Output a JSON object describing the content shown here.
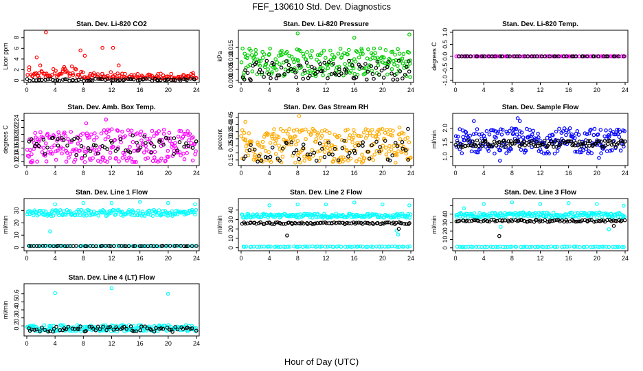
{
  "figure": {
    "title": "FEF_130610  Std. Dev. Diagnostics",
    "xlabel": "Hour of Day (UTC)"
  },
  "chart_data": [
    {
      "type": "scatter",
      "title": "Stan. Dev. Li-820 CO2",
      "ylabel": "Licor ppm",
      "xlim": [
        0,
        24
      ],
      "ylim": [
        0,
        9
      ],
      "xticks": [
        0,
        4,
        8,
        12,
        16,
        20,
        24
      ],
      "yticks": [
        0,
        2,
        4,
        6,
        8
      ],
      "ytick_labels": [
        "0",
        "2",
        "4",
        "6",
        "8"
      ],
      "colors": {
        "main": "#ff0000",
        "ref": "#000000"
      },
      "series": [
        {
          "color": "#ff0000",
          "baseline": 0.3,
          "spread": 0.8,
          "n": 150,
          "dist": "co2",
          "outliers": [
            [
              2.7,
              9.0
            ],
            [
              7.6,
              5.6
            ],
            [
              8.2,
              4.6
            ],
            [
              10.7,
              6.1
            ],
            [
              12.2,
              6.1
            ],
            [
              1.4,
              4.3
            ],
            [
              1.9,
              2.8
            ],
            [
              5.3,
              2.5
            ],
            [
              13.0,
              2.8
            ]
          ]
        },
        {
          "color": "#000000",
          "baseline": 0.12,
          "spread": 0.18,
          "n": 70,
          "dist": "uniform",
          "outliers": []
        }
      ]
    },
    {
      "type": "scatter",
      "title": "Stan. Dev. Li-820 Pressure",
      "ylabel": "kPa",
      "xlim": [
        0,
        24
      ],
      "ylim": [
        0,
        0.022
      ],
      "xticks": [
        0,
        4,
        8,
        12,
        16,
        20,
        24
      ],
      "yticks": [
        0,
        0.005,
        0.01,
        0.015
      ],
      "ytick_labels": [
        "0.000",
        "0.005",
        "0.010",
        "0.015"
      ],
      "colors": {
        "main": "#00cc00",
        "ref": "#000000"
      },
      "series": [
        {
          "color": "#00cc00",
          "baseline": 0.0085,
          "spread": 0.0065,
          "n": 220,
          "dist": "uniform",
          "outliers": [
            [
              8.0,
              0.0215
            ],
            [
              16.0,
              0.0195
            ],
            [
              23.8,
              0.021
            ],
            [
              0.3,
              0.001
            ],
            [
              23.9,
              0.0015
            ]
          ]
        },
        {
          "color": "#000000",
          "baseline": 0.006,
          "spread": 0.0045,
          "n": 90,
          "dist": "arc",
          "outliers": []
        }
      ]
    },
    {
      "type": "scatter",
      "title": "Stan. Dev. Li-820 Temp.",
      "ylabel": "degrees C",
      "xlim": [
        0,
        24
      ],
      "ylim": [
        -1,
        1
      ],
      "xticks": [
        0,
        4,
        8,
        12,
        16,
        20,
        24
      ],
      "yticks": [
        -1,
        -0.5,
        0,
        0.5,
        1
      ],
      "ytick_labels": [
        "-1.0",
        "-0.5",
        "0.0",
        "0.5",
        "1.0"
      ],
      "colors": {
        "main": "#ff00ff",
        "ref": "#000000"
      },
      "series": [
        {
          "color": "#ff00ff",
          "baseline": 0,
          "spread": 0,
          "n": 100,
          "dist": "flat",
          "outliers": []
        },
        {
          "color": "#000000",
          "baseline": 0,
          "spread": 0,
          "n": 48,
          "dist": "flat",
          "outliers": []
        }
      ]
    },
    {
      "type": "scatter",
      "title": "Stan. Dev. Amb. Box Temp.",
      "ylabel": "degrees C",
      "xlim": [
        0,
        24
      ],
      "ylim": [
        0.115,
        0.255
      ],
      "xticks": [
        0,
        4,
        8,
        12,
        16,
        20,
        24
      ],
      "yticks": [
        0.12,
        0.14,
        0.16,
        0.18,
        0.2,
        0.22,
        0.24
      ],
      "ytick_labels": [
        "0.12",
        "0.14",
        "0.16",
        "0.18",
        "0.20",
        "0.22",
        "0.24"
      ],
      "colors": {
        "main": "#ff00ff",
        "ref": "#000000"
      },
      "series": [
        {
          "color": "#ff00ff",
          "baseline": 0.167,
          "spread": 0.048,
          "n": 240,
          "dist": "uniform",
          "outliers": [
            [
              11.2,
              0.243
            ],
            [
              8.4,
              0.232
            ],
            [
              0.7,
              0.118
            ]
          ]
        },
        {
          "color": "#000000",
          "baseline": 0.167,
          "spread": 0.03,
          "n": 60,
          "dist": "uniform",
          "outliers": []
        }
      ]
    },
    {
      "type": "scatter",
      "title": "Stan. Dev. Gas Stream RH",
      "ylabel": "percent",
      "xlim": [
        0,
        24
      ],
      "ylim": [
        0.125,
        0.465
      ],
      "xticks": [
        0,
        4,
        8,
        12,
        16,
        20,
        24
      ],
      "yticks": [
        0.15,
        0.2,
        0.25,
        0.3,
        0.35,
        0.4,
        0.45
      ],
      "ytick_labels": [
        "0.15",
        "",
        "0.25",
        "0.30",
        "0.35",
        "0.40",
        "0.45"
      ],
      "colors": {
        "main": "#ffaa00",
        "ref": "#000000"
      },
      "series": [
        {
          "color": "#ffaa00",
          "baseline": 0.25,
          "spread": 0.12,
          "n": 260,
          "dist": "uniform",
          "outliers": [
            [
              8.2,
              0.46
            ],
            [
              0.6,
              0.42
            ],
            [
              22.4,
              0.38
            ]
          ]
        },
        {
          "color": "#000000",
          "baseline": 0.21,
          "spread": 0.08,
          "n": 60,
          "dist": "uniform",
          "outliers": [
            [
              23.6,
              0.37
            ]
          ]
        }
      ]
    },
    {
      "type": "scatter",
      "title": "Stan. Dev. Sample Flow",
      "ylabel": "ml/min",
      "xlim": [
        0,
        24
      ],
      "ylim": [
        0.75,
        2.45
      ],
      "xticks": [
        0,
        4,
        8,
        12,
        16,
        20,
        24
      ],
      "yticks": [
        1.0,
        1.5,
        2.0
      ],
      "ytick_labels": [
        "1.0",
        "1.5",
        "2.0"
      ],
      "colors": {
        "main": "#0000ff",
        "ref": "#000000"
      },
      "series": [
        {
          "color": "#0000ff",
          "baseline": 1.55,
          "spread": 0.45,
          "n": 230,
          "dist": "uniform",
          "outliers": [
            [
              2.6,
              2.25
            ],
            [
              8.8,
              2.35
            ],
            [
              9.1,
              2.25
            ],
            [
              6.3,
              0.85
            ],
            [
              20.3,
              0.95
            ],
            [
              0.6,
              1.25
            ]
          ]
        },
        {
          "color": "#000000",
          "baseline": 1.45,
          "spread": 0.12,
          "n": 120,
          "dist": "uniform",
          "outliers": []
        }
      ]
    },
    {
      "type": "scatter",
      "title": "Stan. Dev. Line 1 Flow",
      "ylabel": "ml/min",
      "xlim": [
        0,
        24
      ],
      "ylim": [
        -1,
        38
      ],
      "xticks": [
        0,
        4,
        8,
        12,
        16,
        20,
        24
      ],
      "yticks": [
        0,
        10,
        20,
        30
      ],
      "ytick_labels": [
        "0",
        "10",
        "20",
        "30"
      ],
      "colors": {
        "main": "#00ffff",
        "ref": "#000000"
      },
      "series": [
        {
          "color": "#00ffff",
          "baseline": 28,
          "spread": 2.5,
          "n": 180,
          "dist": "uniform",
          "outliers": [
            [
              4.0,
              35
            ],
            [
              8.0,
              36
            ],
            [
              12.0,
              36
            ],
            [
              16.0,
              37
            ],
            [
              20.0,
              36
            ],
            [
              23.8,
              35
            ],
            [
              3.3,
              13
            ]
          ]
        },
        {
          "color": "#00ffff",
          "baseline": 1.2,
          "spread": 0.2,
          "n": 70,
          "dist": "uniform",
          "outliers": []
        },
        {
          "color": "#000000",
          "baseline": 1.2,
          "spread": 0.2,
          "n": 55,
          "dist": "uniform",
          "outliers": []
        }
      ]
    },
    {
      "type": "scatter",
      "title": "Stan. Dev. Line 2 Flow",
      "ylabel": "ml/min",
      "xlim": [
        0,
        24
      ],
      "ylim": [
        -1,
        50
      ],
      "xticks": [
        0,
        4,
        8,
        12,
        16,
        20,
        24
      ],
      "yticks": [
        0,
        10,
        20,
        30,
        40
      ],
      "ytick_labels": [
        "0",
        "10",
        "20",
        "30",
        "40"
      ],
      "colors": {
        "main": "#00ffff",
        "ref": "#000000"
      },
      "series": [
        {
          "color": "#00ffff",
          "baseline": 34,
          "spread": 2.2,
          "n": 180,
          "dist": "uniform",
          "outliers": [
            [
              4.0,
              45
            ],
            [
              8.0,
              46
            ],
            [
              12.0,
              46
            ],
            [
              16.0,
              48
            ],
            [
              20.0,
              46
            ],
            [
              23.8,
              45
            ],
            [
              22.0,
              18
            ],
            [
              22.2,
              14
            ]
          ]
        },
        {
          "color": "#00ffff",
          "baseline": 1.2,
          "spread": 0.3,
          "n": 70,
          "dist": "uniform",
          "outliers": []
        },
        {
          "color": "#000000",
          "baseline": 26,
          "spread": 1.0,
          "n": 90,
          "dist": "uniform",
          "outliers": [
            [
              6.5,
              13
            ],
            [
              22.3,
              20
            ]
          ]
        }
      ]
    },
    {
      "type": "scatter",
      "title": "Stan. Dev. Line 3 Flow",
      "ylabel": "ml/min",
      "xlim": [
        0,
        24
      ],
      "ylim": [
        -1,
        56
      ],
      "xticks": [
        0,
        4,
        8,
        12,
        16,
        20,
        24
      ],
      "yticks": [
        0,
        10,
        20,
        30,
        40,
        50
      ],
      "ytick_labels": [
        "0",
        "10",
        "20",
        "30",
        "40",
        ""
      ],
      "colors": {
        "main": "#00ffff",
        "ref": "#000000"
      },
      "series": [
        {
          "color": "#00ffff",
          "baseline": 39,
          "spread": 3,
          "n": 180,
          "dist": "uniform",
          "outliers": [
            [
              4.0,
              52
            ],
            [
              8.0,
              54
            ],
            [
              12.0,
              52
            ],
            [
              16.0,
              53
            ],
            [
              20.0,
              52
            ],
            [
              23.8,
              50
            ],
            [
              1.2,
              47
            ],
            [
              6.4,
              25
            ],
            [
              21.7,
              22
            ]
          ]
        },
        {
          "color": "#00ffff",
          "baseline": 1.2,
          "spread": 0.3,
          "n": 70,
          "dist": "uniform",
          "outliers": []
        },
        {
          "color": "#000000",
          "baseline": 32,
          "spread": 1.2,
          "n": 90,
          "dist": "uniform",
          "outliers": [
            [
              6.2,
              14
            ],
            [
              22.4,
              26
            ]
          ]
        }
      ]
    },
    {
      "type": "scatter",
      "title": "Stan. Dev. Line 4 (LT) Flow",
      "ylabel": "ml/min",
      "xlim": [
        0,
        24
      ],
      "ylim": [
        0.1,
        0.7
      ],
      "xticks": [
        0,
        4,
        8,
        12,
        16,
        20,
        24
      ],
      "yticks": [
        0.2,
        0.3,
        0.4,
        0.5,
        0.6
      ],
      "ytick_labels": [
        "0.2",
        "0.3",
        "0.4",
        "0.5",
        "0.6"
      ],
      "colors": {
        "main": "#00ffff",
        "ref": "#000000"
      },
      "series": [
        {
          "color": "#00ffff",
          "baseline": 0.17,
          "spread": 0.04,
          "n": 200,
          "dist": "uniform",
          "outliers": [
            [
              4.0,
              0.61
            ],
            [
              12.0,
              0.67
            ],
            [
              20.0,
              0.6
            ]
          ]
        },
        {
          "color": "#000000",
          "baseline": 0.16,
          "spread": 0.035,
          "n": 70,
          "dist": "uniform",
          "outliers": []
        }
      ]
    }
  ]
}
